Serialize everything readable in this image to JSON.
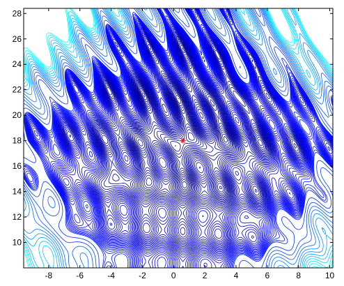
{
  "chart_data": {
    "type": "contour",
    "title": "",
    "xlabel": "",
    "ylabel": "",
    "xlim": [
      -9.6,
      10.2
    ],
    "ylim": [
      8.0,
      28.4
    ],
    "x_ticks": [
      -8,
      -6,
      -4,
      -2,
      0,
      2,
      4,
      6,
      8,
      10
    ],
    "y_ticks": [
      10,
      12,
      14,
      16,
      18,
      20,
      22,
      24,
      26,
      28
    ],
    "x_tick_labels": [
      "-8",
      "-6",
      "-4",
      "-2",
      "0",
      "2",
      "4",
      "6",
      "8",
      "10"
    ],
    "y_tick_labels": [
      "10",
      "12",
      "14",
      "16",
      "18",
      "20",
      "22",
      "24",
      "26",
      "28"
    ],
    "grid": false,
    "legend": "none",
    "colormap": "jet",
    "line_color_dominant": "#0000ff",
    "minimum_marker": {
      "x": 0.6,
      "y": 18.0,
      "symbol": "*",
      "color": "#ff0000"
    },
    "high_value_regions": [
      "top-left",
      "top-right"
    ]
  }
}
